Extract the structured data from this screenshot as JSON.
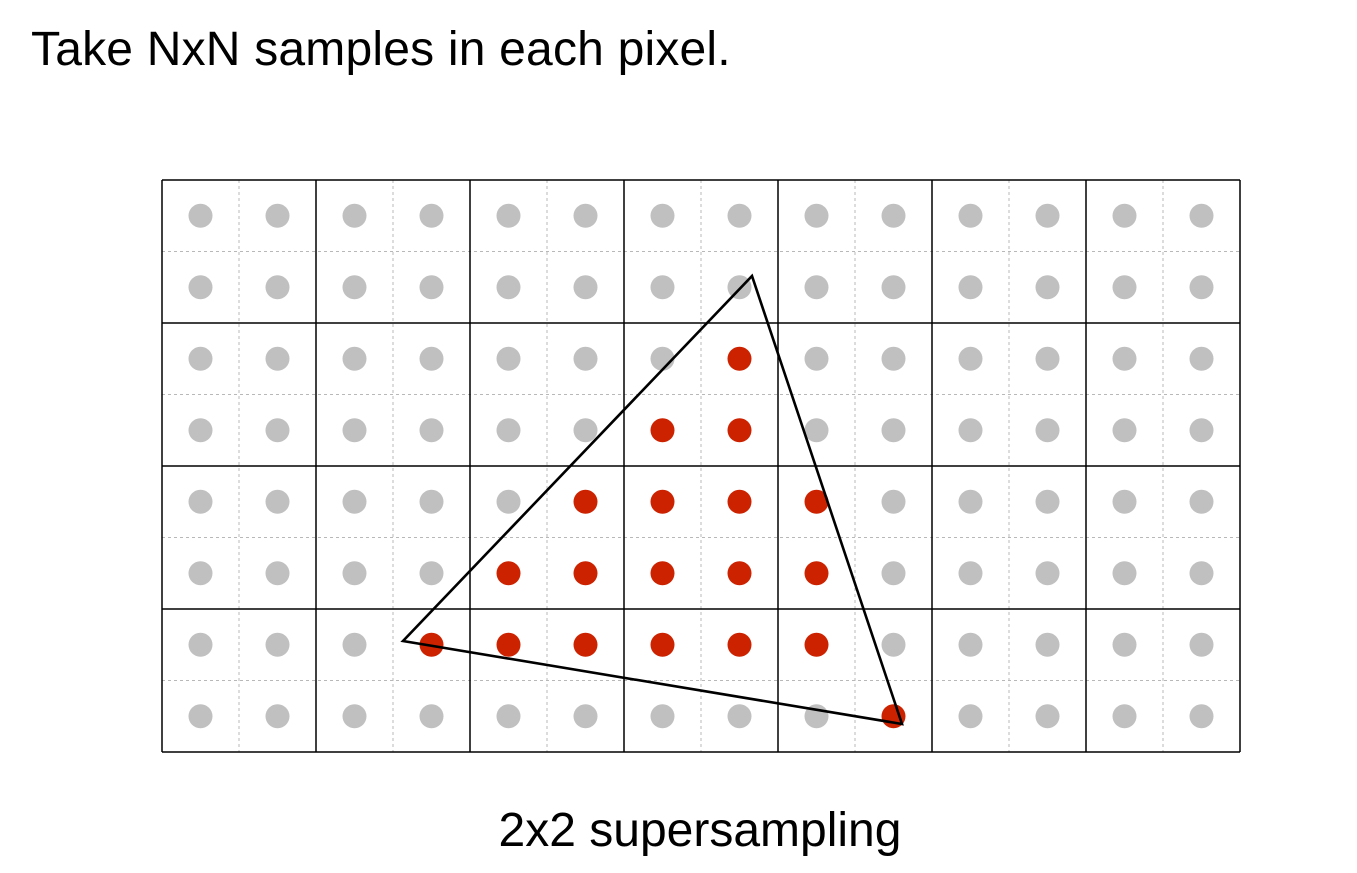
{
  "slide": {
    "heading": "Take NxN samples in each pixel.",
    "caption": "2x2 supersampling"
  },
  "grid": {
    "pixel_columns": 7,
    "pixel_rows": 4,
    "samples_per_pixel_side": 2
  },
  "colors": {
    "sample_outside": "#c0c0c0",
    "sample_inside": "#cc2200",
    "pixel_line": "#000000",
    "subpixel_line": "#b8b8b8",
    "triangle_stroke": "#000000"
  },
  "covered_samples": [
    [
      2,
      7
    ],
    [
      3,
      6
    ],
    [
      3,
      7
    ],
    [
      4,
      5
    ],
    [
      4,
      6
    ],
    [
      4,
      7
    ],
    [
      4,
      8
    ],
    [
      5,
      4
    ],
    [
      5,
      5
    ],
    [
      5,
      6
    ],
    [
      5,
      7
    ],
    [
      5,
      8
    ],
    [
      6,
      3
    ],
    [
      6,
      4
    ],
    [
      6,
      5
    ],
    [
      6,
      6
    ],
    [
      6,
      7
    ],
    [
      6,
      8
    ],
    [
      7,
      9
    ]
  ]
}
